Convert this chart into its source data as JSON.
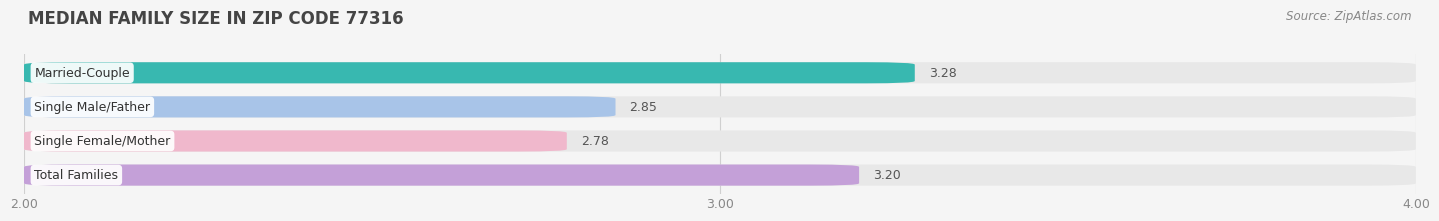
{
  "title": "MEDIAN FAMILY SIZE IN ZIP CODE 77316",
  "source": "Source: ZipAtlas.com",
  "categories": [
    "Married-Couple",
    "Single Male/Father",
    "Single Female/Mother",
    "Total Families"
  ],
  "values": [
    3.28,
    2.85,
    2.78,
    3.2
  ],
  "bar_colors": [
    "#38b8b0",
    "#a8c4e8",
    "#f0b8cc",
    "#c4a0d8"
  ],
  "xlim_min": 2.0,
  "xlim_max": 4.0,
  "xticks": [
    2.0,
    3.0,
    4.0
  ],
  "xtick_labels": [
    "2.00",
    "3.00",
    "4.00"
  ],
  "title_fontsize": 12,
  "source_fontsize": 8.5,
  "bar_label_fontsize": 9,
  "cat_label_fontsize": 9,
  "tick_fontsize": 9,
  "bg_color": "#f5f5f5",
  "bar_bg_color": "#e8e8e8",
  "grid_color": "#d0d0d0",
  "bar_height": 0.62
}
